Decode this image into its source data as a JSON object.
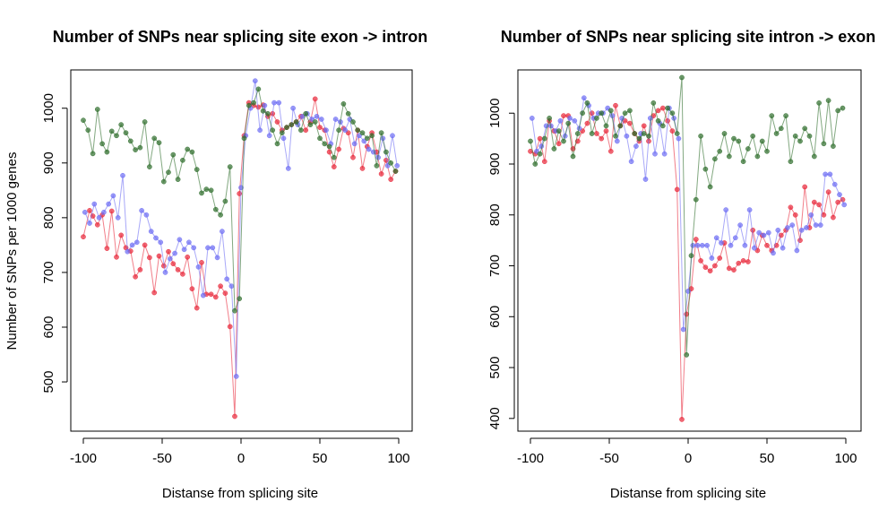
{
  "figure": {
    "shared_ylabel": "Number of SNPs per 1000 genes"
  },
  "colors": {
    "red": "#e8283a",
    "blue": "#6e6ef4",
    "green": "#2f6e2c"
  },
  "chart_data": [
    {
      "type": "line",
      "title": "Number of SNPs near splicing site exon -> intron",
      "xlabel": "Distanse from splicing site",
      "ylabel": "Number of SNPs per 1000 genes",
      "xlim": [
        -100,
        100
      ],
      "ylim": [
        410,
        1070
      ],
      "xticks": [
        -100,
        -50,
        0,
        50,
        100
      ],
      "yticks": [
        500,
        600,
        700,
        800,
        900,
        1000
      ],
      "grid": false,
      "series": [
        {
          "color": "#e8283a",
          "x": [
            -100,
            -96,
            -94,
            -91,
            -88,
            -85,
            -82,
            -79,
            -76,
            -73,
            -70,
            -67,
            -64,
            -61,
            -58,
            -55,
            -52,
            -49,
            -46,
            -43,
            -40,
            -37,
            -34,
            -31,
            -28,
            -25,
            -22,
            -19,
            -16,
            -13,
            -10,
            -7,
            -4,
            -1,
            2,
            5,
            8,
            11,
            14,
            17,
            20,
            23,
            26,
            29,
            32,
            35,
            38,
            41,
            44,
            47,
            50,
            53,
            56,
            59,
            62,
            65,
            68,
            71,
            74,
            77,
            80,
            83,
            86,
            89,
            92,
            95,
            98
          ],
          "y": [
            765,
            813,
            803,
            787,
            805,
            744,
            812,
            728,
            768,
            745,
            739,
            692,
            705,
            750,
            727,
            663,
            730,
            712,
            738,
            716,
            705,
            697,
            728,
            670,
            635,
            718,
            660,
            660,
            655,
            675,
            662,
            601,
            437,
            844,
            950,
            1010,
            1005,
            1002,
            1006,
            985,
            990,
            975,
            960,
            965,
            970,
            975,
            985,
            960,
            975,
            1017,
            965,
            960,
            920,
            893,
            925,
            963,
            955,
            910,
            960,
            890,
            930,
            955,
            920,
            880,
            905,
            870,
            885
          ]
        },
        {
          "color": "#6e6ef4",
          "x": [
            -99,
            -96,
            -93,
            -90,
            -87,
            -84,
            -81,
            -78,
            -75,
            -72,
            -69,
            -66,
            -63,
            -60,
            -57,
            -54,
            -51,
            -48,
            -45,
            -42,
            -39,
            -36,
            -33,
            -30,
            -27,
            -24,
            -21,
            -18,
            -15,
            -12,
            -9,
            -6,
            -3,
            0,
            3,
            6,
            9,
            12,
            15,
            18,
            21,
            24,
            27,
            30,
            33,
            36,
            39,
            42,
            45,
            48,
            51,
            54,
            57,
            60,
            63,
            66,
            69,
            72,
            75,
            78,
            81,
            84,
            87,
            90,
            93,
            96,
            99
          ],
          "y": [
            810,
            790,
            825,
            800,
            810,
            825,
            840,
            800,
            877,
            738,
            750,
            755,
            813,
            805,
            775,
            763,
            755,
            700,
            725,
            735,
            760,
            742,
            755,
            745,
            710,
            658,
            745,
            745,
            727,
            775,
            688,
            675,
            510,
            855,
            950,
            1000,
            1050,
            960,
            1005,
            950,
            1010,
            1010,
            945,
            890,
            1000,
            970,
            985,
            990,
            980,
            985,
            980,
            960,
            935,
            980,
            975,
            960,
            980,
            935,
            950,
            940,
            925,
            920,
            910,
            945,
            895,
            950,
            895
          ]
        },
        {
          "color": "#2f6e2c",
          "x": [
            -100,
            -97,
            -94,
            -91,
            -88,
            -85,
            -82,
            -79,
            -76,
            -73,
            -70,
            -67,
            -64,
            -61,
            -58,
            -55,
            -52,
            -49,
            -46,
            -43,
            -40,
            -37,
            -34,
            -31,
            -28,
            -25,
            -22,
            -19,
            -16,
            -13,
            -10,
            -7,
            -4,
            -1,
            2,
            5,
            8,
            11,
            14,
            17,
            20,
            23,
            26,
            29,
            32,
            35,
            38,
            41,
            44,
            47,
            50,
            53,
            56,
            59,
            62,
            65,
            68,
            71,
            74,
            77,
            80,
            83,
            86,
            89,
            92,
            95,
            98
          ],
          "y": [
            978,
            960,
            917,
            998,
            935,
            920,
            958,
            950,
            970,
            955,
            940,
            924,
            928,
            975,
            893,
            945,
            937,
            866,
            883,
            915,
            870,
            905,
            925,
            920,
            888,
            845,
            852,
            850,
            815,
            805,
            830,
            893,
            630,
            652,
            945,
            1005,
            1010,
            1035,
            995,
            990,
            960,
            935,
            955,
            965,
            970,
            975,
            960,
            990,
            970,
            975,
            945,
            935,
            930,
            910,
            960,
            1008,
            990,
            975,
            960,
            955,
            945,
            950,
            895,
            955,
            920,
            900,
            885
          ]
        }
      ]
    },
    {
      "type": "line",
      "title": "Number of SNPs near splicing site intron -> exon",
      "xlabel": "Distanse from splicing site",
      "ylabel": "",
      "xlim": [
        -100,
        100
      ],
      "ylim": [
        375,
        1085
      ],
      "xticks": [
        -100,
        -50,
        0,
        50,
        100
      ],
      "yticks": [
        400,
        500,
        600,
        700,
        800,
        900,
        1000
      ],
      "grid": false,
      "series": [
        {
          "color": "#e8283a",
          "x": [
            -100,
            -97,
            -94,
            -91,
            -88,
            -85,
            -82,
            -79,
            -76,
            -73,
            -70,
            -67,
            -64,
            -61,
            -58,
            -55,
            -52,
            -49,
            -46,
            -43,
            -40,
            -37,
            -34,
            -31,
            -28,
            -25,
            -22,
            -19,
            -16,
            -13,
            -10,
            -7,
            -4,
            -1,
            2,
            5,
            8,
            11,
            14,
            17,
            20,
            23,
            26,
            29,
            32,
            35,
            38,
            41,
            44,
            47,
            50,
            53,
            56,
            59,
            62,
            65,
            68,
            71,
            74,
            77,
            80,
            83,
            86,
            89,
            92,
            95,
            98
          ],
          "y": [
            925,
            920,
            950,
            905,
            985,
            965,
            940,
            995,
            995,
            930,
            945,
            965,
            980,
            1000,
            960,
            950,
            965,
            925,
            1015,
            975,
            985,
            980,
            960,
            945,
            975,
            945,
            995,
            1005,
            1010,
            985,
            965,
            850,
            398,
            605,
            655,
            752,
            710,
            697,
            690,
            700,
            715,
            745,
            695,
            692,
            705,
            710,
            708,
            770,
            730,
            760,
            740,
            730,
            740,
            760,
            770,
            815,
            800,
            750,
            855,
            775,
            825,
            820,
            800,
            845,
            795,
            825,
            830
          ]
        },
        {
          "color": "#6e6ef4",
          "x": [
            -99,
            -96,
            -93,
            -90,
            -87,
            -84,
            -81,
            -78,
            -75,
            -72,
            -69,
            -66,
            -63,
            -60,
            -57,
            -54,
            -51,
            -48,
            -45,
            -42,
            -39,
            -36,
            -33,
            -30,
            -27,
            -24,
            -21,
            -18,
            -15,
            -12,
            -9,
            -6,
            -3,
            0,
            3,
            6,
            9,
            12,
            15,
            18,
            21,
            24,
            27,
            30,
            33,
            36,
            39,
            42,
            45,
            48,
            51,
            54,
            57,
            60,
            63,
            66,
            69,
            72,
            75,
            78,
            81,
            84,
            87,
            90,
            93,
            96,
            99
          ],
          "y": [
            990,
            925,
            935,
            975,
            975,
            965,
            985,
            955,
            990,
            985,
            970,
            1030,
            1015,
            990,
            1000,
            1000,
            1010,
            995,
            945,
            990,
            955,
            905,
            935,
            960,
            870,
            990,
            920,
            980,
            920,
            1010,
            990,
            950,
            575,
            650,
            740,
            740,
            740,
            740,
            715,
            755,
            745,
            810,
            740,
            755,
            780,
            740,
            810,
            735,
            765,
            760,
            765,
            725,
            770,
            735,
            775,
            780,
            730,
            770,
            775,
            800,
            780,
            780,
            880,
            880,
            860,
            840,
            820
          ]
        },
        {
          "color": "#2f6e2c",
          "x": [
            -100,
            -97,
            -94,
            -91,
            -88,
            -85,
            -82,
            -79,
            -76,
            -73,
            -70,
            -67,
            -64,
            -61,
            -58,
            -55,
            -52,
            -49,
            -46,
            -43,
            -40,
            -37,
            -34,
            -31,
            -28,
            -25,
            -22,
            -19,
            -16,
            -13,
            -10,
            -7,
            -4,
            -1,
            2,
            5,
            8,
            11,
            14,
            17,
            20,
            23,
            26,
            29,
            32,
            35,
            38,
            41,
            44,
            47,
            50,
            53,
            56,
            59,
            62,
            65,
            68,
            71,
            74,
            77,
            80,
            83,
            86,
            89,
            92,
            95,
            98
          ],
          "y": [
            945,
            900,
            920,
            950,
            990,
            930,
            965,
            945,
            980,
            915,
            960,
            1000,
            1020,
            960,
            990,
            1000,
            975,
            1005,
            955,
            975,
            1000,
            1005,
            960,
            950,
            960,
            955,
            1020,
            985,
            975,
            1010,
            1000,
            960,
            1070,
            525,
            720,
            830,
            955,
            890,
            855,
            910,
            925,
            960,
            915,
            950,
            945,
            905,
            930,
            955,
            915,
            945,
            925,
            995,
            960,
            970,
            995,
            905,
            955,
            945,
            970,
            955,
            915,
            1020,
            940,
            1025,
            935,
            1005,
            1010
          ]
        }
      ]
    }
  ]
}
